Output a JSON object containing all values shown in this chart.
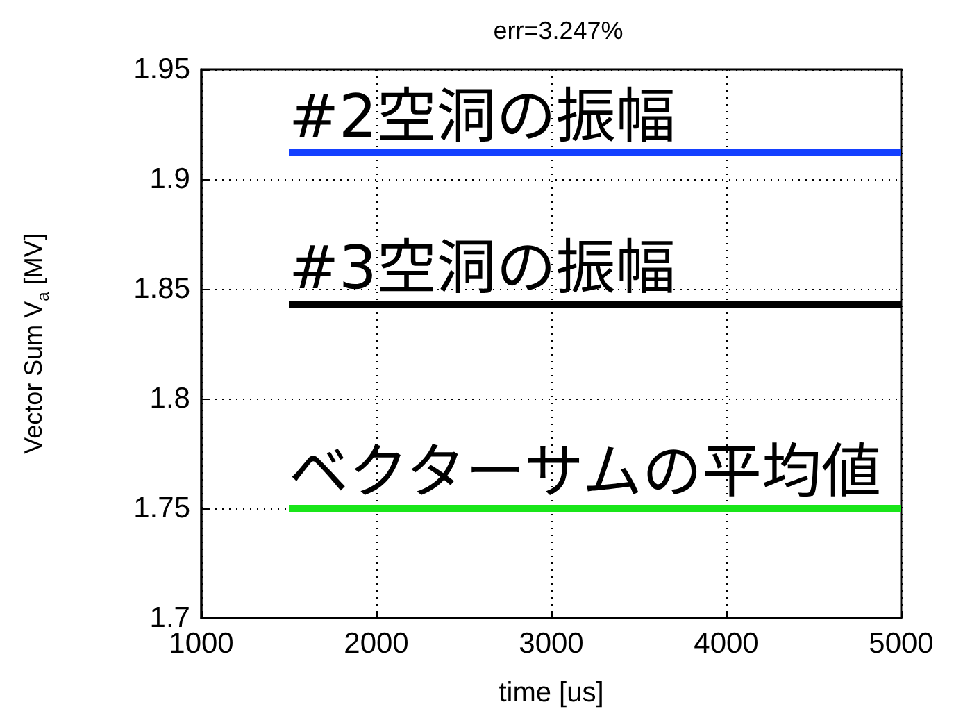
{
  "chart_data": {
    "type": "line",
    "title": "err=3.247%",
    "xlabel": "time [us]",
    "ylabel": "Vector Sum V$_{a}$ [MV]",
    "xlim": [
      1000,
      5000
    ],
    "xticks": [
      1000,
      2000,
      3000,
      4000,
      5000
    ],
    "ylim": [
      1.7,
      1.95
    ],
    "yticks": [
      1.7,
      1.75,
      1.8,
      1.85,
      1.9,
      1.95
    ],
    "grid": true,
    "marker": "none",
    "line_style": "solid",
    "x": [
      1500,
      5000
    ],
    "series": [
      {
        "color": "#1440ff",
        "values": [
          1.912,
          1.912
        ]
      },
      {
        "color": "#000000",
        "values": [
          1.843,
          1.843
        ]
      },
      {
        "color": "#19e619",
        "values": [
          1.75,
          1.75
        ]
      }
    ],
    "annotations": [
      {
        "text": "#2空洞の振幅",
        "y": 1.912
      },
      {
        "text": "#3空洞の振幅",
        "y": 1.843
      },
      {
        "text": "ベクターサムの平均値",
        "y": 1.75
      }
    ]
  }
}
